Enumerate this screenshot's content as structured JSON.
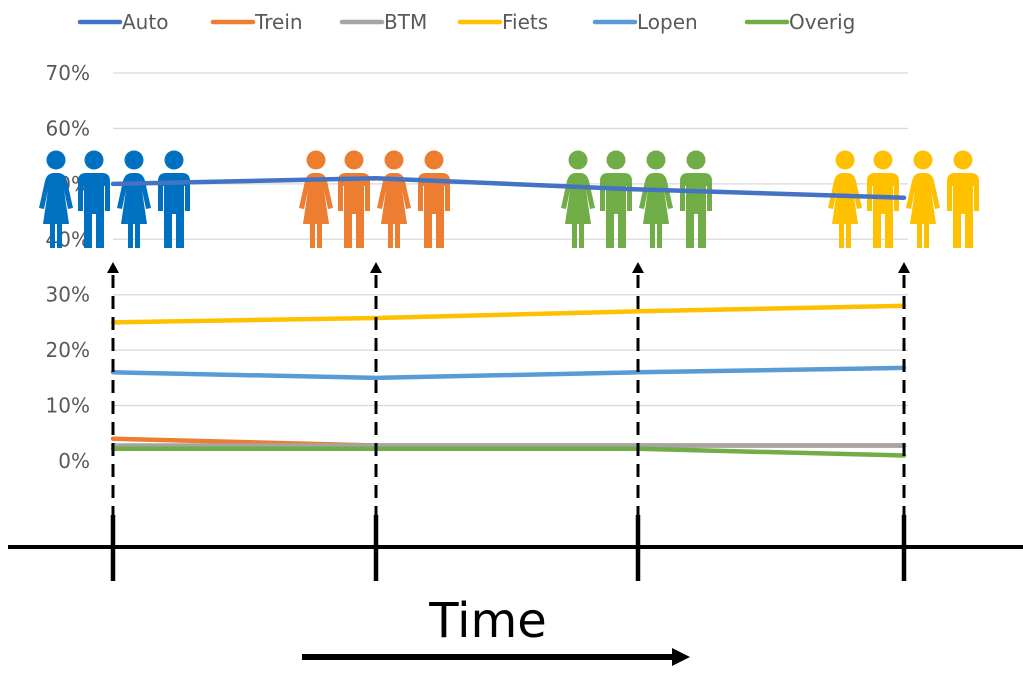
{
  "chart_data": {
    "type": "line",
    "title": "",
    "xlabel": "Time",
    "ylabel": "",
    "x": [
      1,
      2,
      3,
      4
    ],
    "ylim": [
      0,
      70
    ],
    "y_ticks": [
      "0%",
      "10%",
      "20%",
      "30%",
      "40%",
      "50%",
      "60%",
      "70%"
    ],
    "grid": true,
    "legend": "top",
    "series": [
      {
        "name": "Auto",
        "color": "#4472C4",
        "values": [
          50.0,
          51.0,
          49.0,
          47.5
        ]
      },
      {
        "name": "Trein",
        "color": "#ED7D31",
        "values": [
          4.0,
          2.8,
          2.8,
          2.8
        ]
      },
      {
        "name": "BTM",
        "color": "#A5A5A5",
        "values": [
          2.8,
          2.8,
          2.8,
          2.8
        ]
      },
      {
        "name": "Fiets",
        "color": "#FFC000",
        "values": [
          25.0,
          25.8,
          27.0,
          28.0
        ]
      },
      {
        "name": "Lopen",
        "color": "#5B9BD5",
        "values": [
          16.0,
          15.0,
          16.0,
          16.8
        ]
      },
      {
        "name": "Overig",
        "color": "#70AD47",
        "values": [
          2.2,
          2.2,
          2.2,
          1.0
        ]
      }
    ],
    "people_groups": [
      {
        "color": "#0070C0",
        "icon": "people-group-icon"
      },
      {
        "color": "#ED7D31",
        "icon": "people-group-icon"
      },
      {
        "color": "#70AD47",
        "icon": "people-group-icon"
      },
      {
        "color": "#FFC000",
        "icon": "people-group-icon"
      }
    ]
  }
}
